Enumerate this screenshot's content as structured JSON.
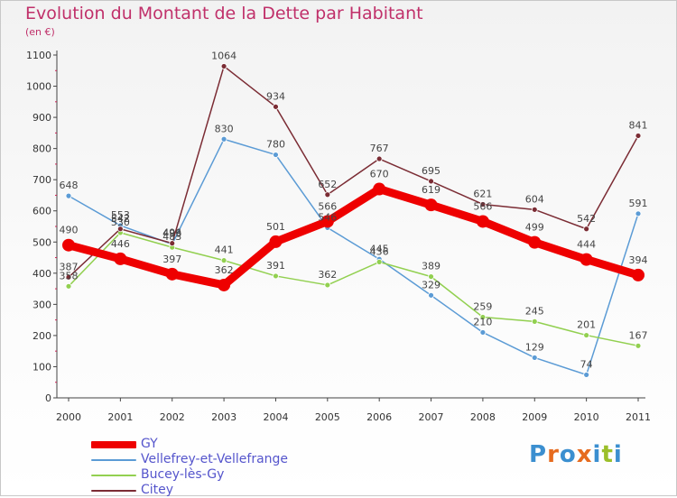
{
  "title": "Evolution du Montant de la Dette par Habitant",
  "subtitle": "(en €)",
  "logo": {
    "text": "Proxiti",
    "colors": [
      "#3b8fd0",
      "#e66b1f",
      "#3b8fd0",
      "#e66b1f",
      "#3b8fd0",
      "#9bbf2a",
      "#3b8fd0"
    ]
  },
  "chart_data": {
    "type": "line",
    "x": [
      "2000",
      "2001",
      "2002",
      "2003",
      "2004",
      "2005",
      "2006",
      "2007",
      "2008",
      "2009",
      "2010",
      "2011"
    ],
    "ylim": [
      0,
      1100
    ],
    "yticks": [
      "0",
      "100",
      "200",
      "300",
      "400",
      "500",
      "600",
      "700",
      "800",
      "900",
      "1000",
      "1100"
    ],
    "grid": false,
    "legend": "bottom-left",
    "series": [
      {
        "name": "GY",
        "color": "#ee0000",
        "width": 9,
        "values": [
          490,
          446,
          397,
          362,
          501,
          566,
          670,
          619,
          566,
          499,
          444,
          394
        ],
        "labels": [
          "490",
          "446",
          "397",
          "362",
          "501",
          "566",
          "670",
          "619",
          "566",
          "499",
          "444",
          "394"
        ]
      },
      {
        "name": "Vellefrey-et-Vellefrange",
        "color": "#5b9bd5",
        "width": 1.5,
        "values": [
          648,
          553,
          493,
          830,
          780,
          546,
          445,
          329,
          210,
          129,
          74,
          591
        ],
        "labels": [
          "648",
          "553",
          "493",
          "830",
          "780",
          "546",
          "445",
          "329",
          "210",
          "129",
          "74",
          "591"
        ]
      },
      {
        "name": "Bucey-lès-Gy",
        "color": "#92d050",
        "width": 1.5,
        "values": [
          358,
          530,
          483,
          441,
          391,
          362,
          436,
          389,
          259,
          245,
          201,
          167
        ],
        "labels": [
          "358",
          "530",
          "483",
          "441",
          "391",
          "362",
          "436",
          "389",
          "259",
          "245",
          "201",
          "167"
        ]
      },
      {
        "name": "Citey",
        "color": "#7b2c34",
        "width": 1.5,
        "values": [
          387,
          542,
          496,
          1064,
          934,
          652,
          767,
          695,
          621,
          604,
          542,
          841
        ],
        "labels": [
          "387",
          "542",
          "496",
          "1064",
          "934",
          "652",
          "767",
          "695",
          "621",
          "604",
          "542",
          "841"
        ]
      }
    ]
  }
}
